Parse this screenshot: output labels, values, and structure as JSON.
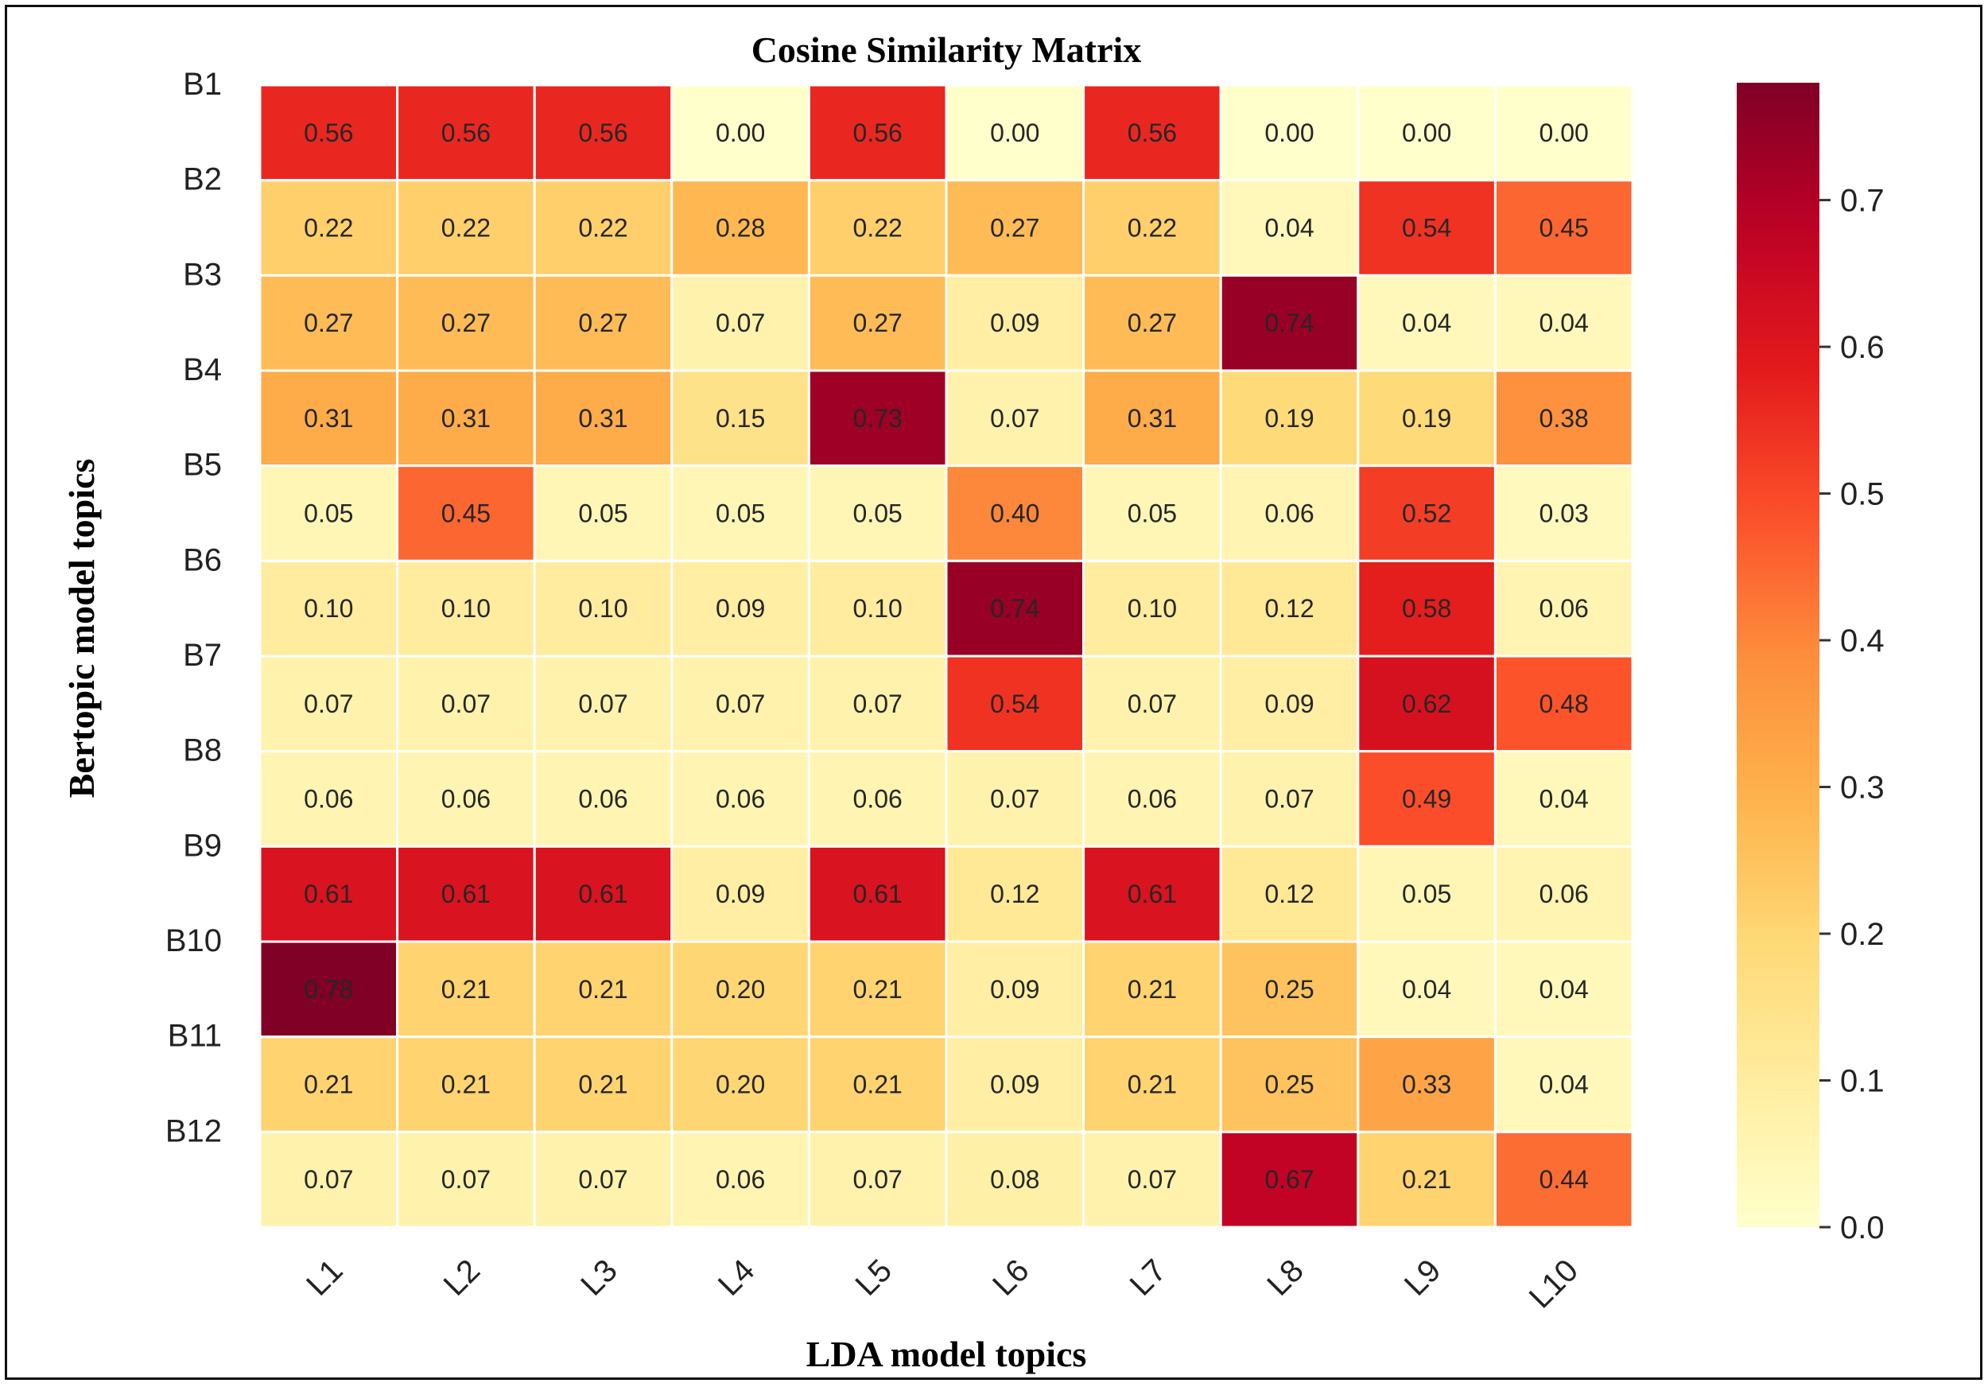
{
  "chart_data": {
    "type": "heatmap",
    "title": "Cosine Similarity Matrix",
    "xlabel": "LDA model topics",
    "ylabel": "Bertopic model topics",
    "x_categories": [
      "L1",
      "L2",
      "L3",
      "L4",
      "L5",
      "L6",
      "L7",
      "L8",
      "L9",
      "L10"
    ],
    "y_categories": [
      "B1",
      "B2",
      "B3",
      "B4",
      "B5",
      "B6",
      "B7",
      "B8",
      "B9",
      "B10",
      "B11",
      "B12"
    ],
    "values": [
      [
        "0.56",
        "0.56",
        "0.56",
        "0.00",
        "0.56",
        "0.00",
        "0.56",
        "0.00",
        "0.00",
        "0.00"
      ],
      [
        "0.22",
        "0.22",
        "0.22",
        "0.28",
        "0.22",
        "0.27",
        "0.22",
        "0.04",
        "0.54",
        "0.45"
      ],
      [
        "0.27",
        "0.27",
        "0.27",
        "0.07",
        "0.27",
        "0.09",
        "0.27",
        "0.74",
        "0.04",
        "0.04"
      ],
      [
        "0.31",
        "0.31",
        "0.31",
        "0.15",
        "0.73",
        "0.07",
        "0.31",
        "0.19",
        "0.19",
        "0.38"
      ],
      [
        "0.05",
        "0.45",
        "0.05",
        "0.05",
        "0.05",
        "0.40",
        "0.05",
        "0.06",
        "0.52",
        "0.03"
      ],
      [
        "0.10",
        "0.10",
        "0.10",
        "0.09",
        "0.10",
        "0.74",
        "0.10",
        "0.12",
        "0.58",
        "0.06"
      ],
      [
        "0.07",
        "0.07",
        "0.07",
        "0.07",
        "0.07",
        "0.54",
        "0.07",
        "0.09",
        "0.62",
        "0.48"
      ],
      [
        "0.06",
        "0.06",
        "0.06",
        "0.06",
        "0.06",
        "0.07",
        "0.06",
        "0.07",
        "0.49",
        "0.04"
      ],
      [
        "0.61",
        "0.61",
        "0.61",
        "0.09",
        "0.61",
        "0.12",
        "0.61",
        "0.12",
        "0.05",
        "0.06"
      ],
      [
        "0.78",
        "0.21",
        "0.21",
        "0.20",
        "0.21",
        "0.09",
        "0.21",
        "0.25",
        "0.04",
        "0.04"
      ],
      [
        "0.21",
        "0.21",
        "0.21",
        "0.20",
        "0.21",
        "0.09",
        "0.21",
        "0.25",
        "0.33",
        "0.04"
      ],
      [
        "0.07",
        "0.07",
        "0.07",
        "0.06",
        "0.07",
        "0.08",
        "0.07",
        "0.67",
        "0.21",
        "0.44"
      ]
    ],
    "colormap": "YlOrRd",
    "colorbar": {
      "range": [
        0,
        0.78
      ],
      "ticks": [
        "0.0",
        "0.1",
        "0.2",
        "0.3",
        "0.4",
        "0.5",
        "0.6",
        "0.7"
      ]
    },
    "grid": false
  }
}
